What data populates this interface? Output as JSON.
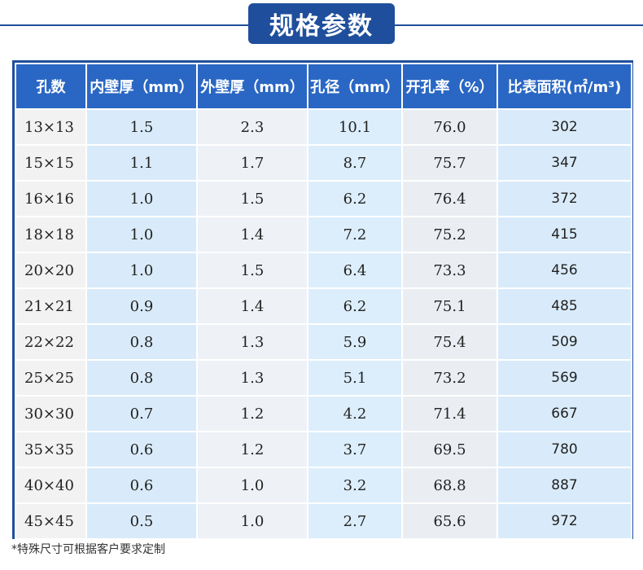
{
  "title": "规格参数",
  "table": {
    "headers": [
      "孔数",
      "内壁厚（mm）",
      "外壁厚（mm）",
      "孔径（mm）",
      "开孔率（%）",
      "比表面积(㎡/m³)"
    ],
    "rows": [
      [
        "13×13",
        "1.5",
        "2.3",
        "10.1",
        "76.0",
        "302"
      ],
      [
        "15×15",
        "1.1",
        "1.7",
        "8.7",
        "75.7",
        "347"
      ],
      [
        "16×16",
        "1.0",
        "1.5",
        "6.2",
        "76.4",
        "372"
      ],
      [
        "18×18",
        "1.0",
        "1.4",
        "7.2",
        "75.2",
        "415"
      ],
      [
        "20×20",
        "1.0",
        "1.5",
        "6.4",
        "73.3",
        "456"
      ],
      [
        "21×21",
        "0.9",
        "1.4",
        "6.2",
        "75.1",
        "485"
      ],
      [
        "22×22",
        "0.8",
        "1.3",
        "5.9",
        "75.4",
        "509"
      ],
      [
        "25×25",
        "0.8",
        "1.3",
        "5.1",
        "73.2",
        "569"
      ],
      [
        "30×30",
        "0.7",
        "1.2",
        "4.2",
        "71.4",
        "667"
      ],
      [
        "35×35",
        "0.6",
        "1.2",
        "3.7",
        "69.5",
        "780"
      ],
      [
        "40×40",
        "0.6",
        "1.0",
        "3.2",
        "68.8",
        "887"
      ],
      [
        "45×45",
        "0.5",
        "1.0",
        "2.7",
        "65.6",
        "972"
      ]
    ]
  },
  "footnote": "*特殊尺寸可根据客户要求定制",
  "colors": {
    "header_bg": "#2a67c4",
    "title_bg": "#1f4f9c",
    "cell_blue": "#d9ebfa",
    "cell_gray": "#eef2f7"
  }
}
